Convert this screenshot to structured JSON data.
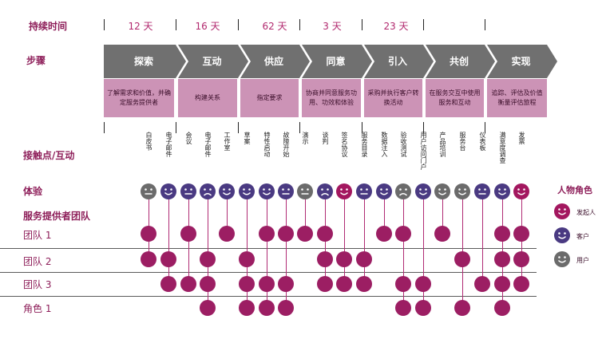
{
  "row_labels": {
    "duration": "持续时间",
    "steps": "步骤",
    "touchpoints": "接触点/互动",
    "experience": "体验",
    "providers": "服务提供者团队",
    "team1": "团队 1",
    "team2": "团队 2",
    "team3": "团队 3",
    "role1": "角色 1"
  },
  "durations": [
    "12 天",
    "16 天",
    "62 天",
    "3 天",
    "23 天"
  ],
  "stages": [
    {
      "name": "探索",
      "desc": "了解需求和价值，并确定服务提供者"
    },
    {
      "name": "互动",
      "desc": "构建关系"
    },
    {
      "name": "供应",
      "desc": "指定要求"
    },
    {
      "name": "同意",
      "desc": "协商并同意服务功用、功效和体验"
    },
    {
      "name": "引入",
      "desc": "采购并执行客户转换活动"
    },
    {
      "name": "共创",
      "desc": "在服务交互中使用服务和互动"
    },
    {
      "name": "实现",
      "desc": "追踪、评估及价值衡量评估旅程"
    }
  ],
  "touchpoints": [
    {
      "label": "白皮书",
      "persona": "user",
      "mood": "neutral",
      "teams": [
        1,
        2
      ]
    },
    {
      "label": "电子邮件",
      "persona": "customer",
      "mood": "happy",
      "teams": [
        2,
        3
      ]
    },
    {
      "label": "会议",
      "persona": "customer",
      "mood": "neutral",
      "teams": [
        1,
        3
      ]
    },
    {
      "label": "电子邮件",
      "persona": "customer",
      "mood": "sad",
      "teams": [
        2,
        3,
        4
      ]
    },
    {
      "label": "工作室",
      "persona": "customer",
      "mood": "happy",
      "teams": [
        1
      ]
    },
    {
      "label": "草案",
      "persona": "customer",
      "mood": "happy",
      "teams": [
        2,
        3,
        4
      ]
    },
    {
      "label": "特性启动",
      "persona": "customer",
      "mood": "happy",
      "teams": [
        1,
        3,
        4
      ]
    },
    {
      "label": "故障开始",
      "persona": "customer",
      "mood": "neutral",
      "teams": [
        1,
        3,
        4
      ]
    },
    {
      "label": "演示",
      "persona": "user",
      "mood": "neutral",
      "teams": [
        1
      ]
    },
    {
      "label": "谈判",
      "persona": "customer",
      "mood": "sad",
      "teams": [
        1,
        2,
        3
      ]
    },
    {
      "label": "签名协议",
      "persona": "initiator",
      "mood": "happy",
      "teams": [
        2,
        3
      ]
    },
    {
      "label": "服务目录",
      "persona": "customer",
      "mood": "neutral",
      "teams": [
        2,
        3
      ]
    },
    {
      "label": "数据注入",
      "persona": "customer",
      "mood": "happy",
      "teams": [
        1
      ]
    },
    {
      "label": "验收测试",
      "persona": "user",
      "mood": "sad",
      "teams": [
        1,
        3,
        4
      ]
    },
    {
      "label": "用户访问门户",
      "persona": "customer",
      "mood": "happy",
      "teams": [
        3,
        4
      ]
    },
    {
      "label": "产品培训",
      "persona": "user",
      "mood": "happy",
      "teams": [
        1
      ]
    },
    {
      "label": "服务台",
      "persona": "user",
      "mood": "happy",
      "teams": [
        2,
        4
      ]
    },
    {
      "label": "仪表板",
      "persona": "customer",
      "mood": "neutral",
      "teams": [
        3
      ]
    },
    {
      "label": "满意度调查",
      "persona": "customer",
      "mood": "happy",
      "teams": [
        1,
        2,
        3,
        4
      ]
    },
    {
      "label": "发票",
      "persona": "initiator",
      "mood": "happy",
      "teams": [
        1,
        2,
        3
      ]
    }
  ],
  "legend": {
    "title": "人物角色",
    "items": [
      {
        "label": "发起人",
        "color": "#a3175f"
      },
      {
        "label": "客户",
        "color": "#4a3a82"
      },
      {
        "label": "用户",
        "color": "#6b6b6b"
      }
    ]
  },
  "colors": {
    "accent": "#8e1f5a",
    "stage_arrow": "#707070",
    "desc_box": "#cc93b6",
    "dot": "#9c1e63",
    "initiator": "#a3175f",
    "customer": "#4a3a82",
    "user": "#6b6b6b"
  }
}
